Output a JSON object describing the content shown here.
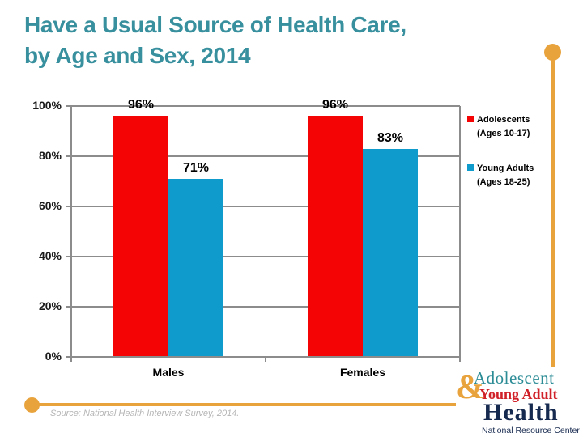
{
  "slide": {
    "title_line1": "Have a Usual Source of Health Care,",
    "title_line2": "by Age and Sex, 2014",
    "source": "Source: National Health Interview Survey, 2014."
  },
  "colors": {
    "title_teal": "#38909E",
    "adolescents_red": "#F40404",
    "young_adults_blue": "#109BCD",
    "accent_gold": "#E8A33D",
    "gridline_gray": "#8C8C8C"
  },
  "chart_data": {
    "type": "bar",
    "categories": [
      "Males",
      "Females"
    ],
    "series": [
      {
        "name": "Adolescents (Ages 10-17)",
        "color": "#F40404",
        "values": [
          96,
          96
        ]
      },
      {
        "name": "Young Adults (Ages 18-25)",
        "color": "#109BCD",
        "values": [
          71,
          83
        ]
      }
    ],
    "value_suffix": "%",
    "data_labels": [
      [
        "96%",
        "96%"
      ],
      [
        "71%",
        "83%"
      ]
    ],
    "ylim": [
      0,
      100
    ],
    "ytick_step": 20,
    "yticks": [
      "100%",
      "80%",
      "60%",
      "40%",
      "20%",
      "0%"
    ],
    "grid": true,
    "legend_position": "right"
  },
  "legend": {
    "items": [
      {
        "line1": "Adolescents",
        "line2": "(Ages 10-17)",
        "color": "#F40404"
      },
      {
        "line1": "Young Adults",
        "line2": "(Ages 18-25)",
        "color": "#109BCD"
      }
    ]
  },
  "logo": {
    "ampersand": "&",
    "line1": "Adolescent",
    "line2": "Young Adult",
    "line3": "Health",
    "line4": "National Resource Center"
  }
}
